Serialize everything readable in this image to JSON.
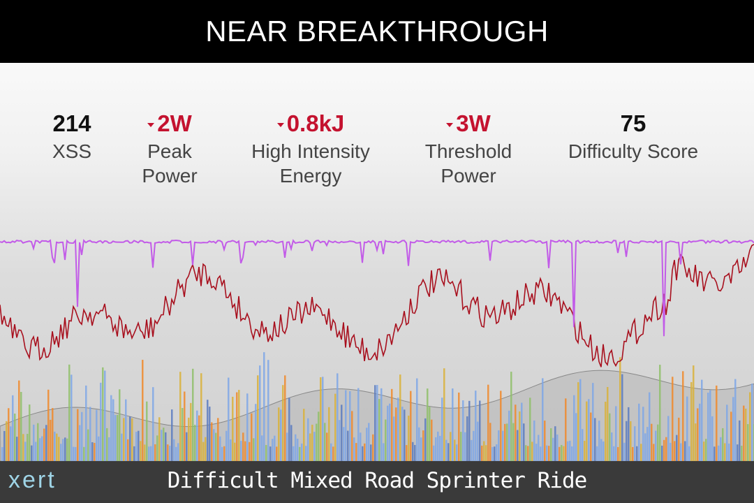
{
  "header": {
    "title": "NEAR BREAKTHROUGH"
  },
  "stats": [
    {
      "value": "214",
      "label": "XSS"
    },
    {
      "value": "2W",
      "label": "Peak Power"
    },
    {
      "value": "0.8kJ",
      "label": "High Intensity Energy"
    },
    {
      "value": "3W",
      "label": "Threshold Power"
    },
    {
      "value": "75",
      "label": "Difficulty Score"
    }
  ],
  "footer": {
    "logo": "xert",
    "title": "Difficult Mixed Road Sprinter Ride"
  }
}
